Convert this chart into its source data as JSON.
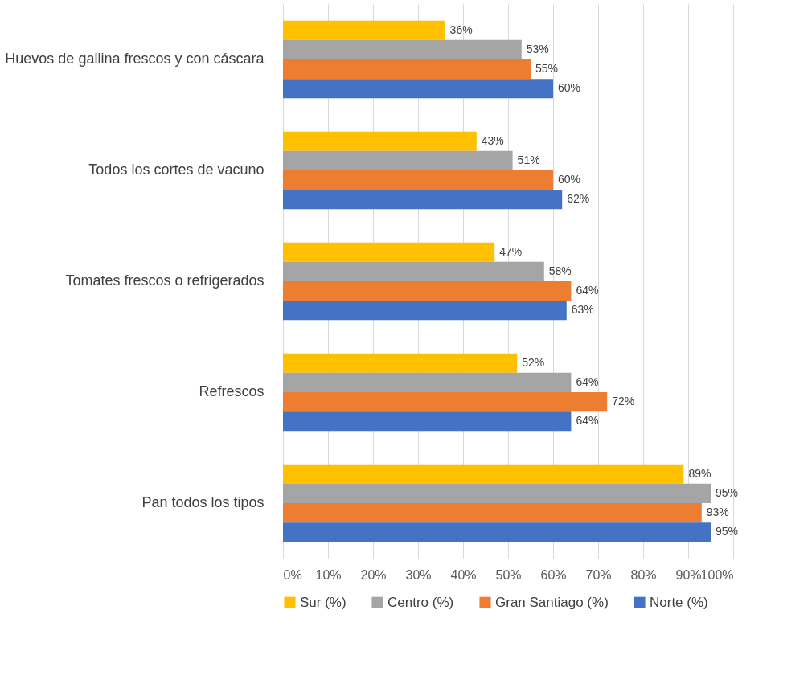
{
  "chart_data": {
    "type": "bar",
    "orientation": "horizontal",
    "categories": [
      "Huevos de gallina frescos y con cáscara",
      "Todos los cortes de vacuno",
      "Tomates frescos o refrigerados",
      "Refrescos",
      "Pan todos los tipos"
    ],
    "series": [
      {
        "name": "Sur (%)",
        "color": "#ffc000",
        "values": [
          36,
          43,
          47,
          52,
          89
        ],
        "value_labels": [
          "36%",
          "43%",
          "47%",
          "52%",
          "89%"
        ]
      },
      {
        "name": "Centro (%)",
        "color": "#a5a5a5",
        "values": [
          53,
          51,
          58,
          64,
          95
        ],
        "value_labels": [
          "53%",
          "51%",
          "58%",
          "64%",
          "95%"
        ]
      },
      {
        "name": "Gran Santiago (%)",
        "color": "#ed7d31",
        "values": [
          55,
          60,
          64,
          72,
          93
        ],
        "value_labels": [
          "55%",
          "60%",
          "64%",
          "72%",
          "93%"
        ]
      },
      {
        "name": "Norte (%)",
        "color": "#4472c4",
        "values": [
          60,
          62,
          63,
          64,
          95
        ],
        "value_labels": [
          "60%",
          "62%",
          "63%",
          "64%",
          "95%"
        ]
      }
    ],
    "xlim": [
      0,
      100
    ],
    "xticks": [
      {
        "value": 0,
        "label": "0%"
      },
      {
        "value": 10,
        "label": "10%"
      },
      {
        "value": 20,
        "label": "20%"
      },
      {
        "value": 30,
        "label": "30%"
      },
      {
        "value": 40,
        "label": "40%"
      },
      {
        "value": 50,
        "label": "50%"
      },
      {
        "value": 60,
        "label": "60%"
      },
      {
        "value": 70,
        "label": "70%"
      },
      {
        "value": 80,
        "label": "80%"
      },
      {
        "value": 90,
        "label": "90%"
      },
      {
        "value": 100,
        "label": "100%"
      }
    ],
    "grid": "x",
    "legend": "bottom"
  }
}
